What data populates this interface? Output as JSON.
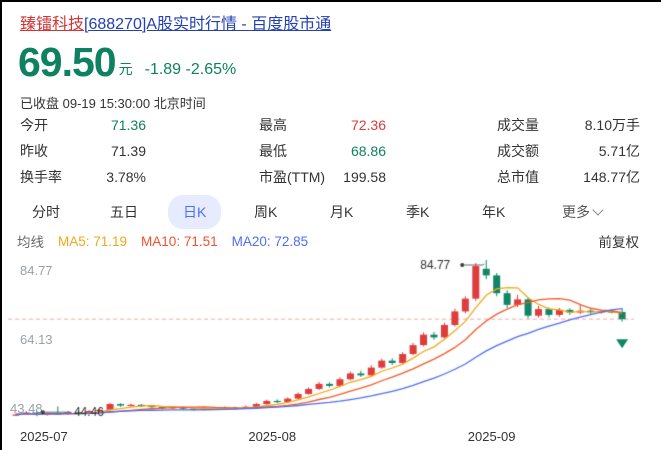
{
  "page": {
    "title_stock": "臻镭科技",
    "title_rest": "[688270]A股实时行情 - 百度股市通"
  },
  "quote": {
    "price": "69.50",
    "unit": "元",
    "change": "-1.89",
    "change_pct": "-2.65%",
    "tone": "down",
    "status_line": "已收盘 09-19 15:30:00 北京时间"
  },
  "stats": {
    "col1": [
      {
        "label": "今开",
        "value": "71.36",
        "tone": "down"
      },
      {
        "label": "昨收",
        "value": "71.39",
        "tone": "flat"
      },
      {
        "label": "换手率",
        "value": "3.78%",
        "tone": "flat"
      }
    ],
    "col2": [
      {
        "label": "最高",
        "value": "72.36",
        "tone": "up"
      },
      {
        "label": "最低",
        "value": "68.86",
        "tone": "down"
      },
      {
        "label": "市盈(TTM)",
        "value": "199.58",
        "tone": "flat"
      }
    ],
    "col3": [
      {
        "label": "成交量",
        "value": "8.10万手",
        "tone": "flat"
      },
      {
        "label": "成交额",
        "value": "5.71亿",
        "tone": "flat"
      },
      {
        "label": "总市值",
        "value": "148.77亿",
        "tone": "flat"
      }
    ]
  },
  "tabs": {
    "items": [
      "分时",
      "五日",
      "日K",
      "周K",
      "月K",
      "季K",
      "年K"
    ],
    "selected": "日K",
    "more_label": "更多"
  },
  "ma_legend": {
    "label": "均线",
    "ma5": "MA5: 71.19",
    "ma10": "MA10: 71.51",
    "ma20": "MA20: 72.85",
    "adjust_label": "前复权"
  },
  "chart_data": {
    "type": "candlestick",
    "title": "日K 前复权 candlestick chart 2025-07 to 2025-09-19",
    "y_axis": {
      "labels": [
        "84.77",
        "64.13",
        "43.48"
      ],
      "ylim": [
        43.48,
        84.77
      ]
    },
    "x_axis": {
      "ticks": [
        {
          "index": 0,
          "label": "2025-07"
        },
        {
          "index": 23,
          "label": "2025-08"
        },
        {
          "index": 44,
          "label": "2025-09"
        }
      ]
    },
    "current_price_line": 69.5,
    "ma_windows": [
      5,
      10,
      20
    ],
    "annotations": {
      "low": {
        "index": 2,
        "price": 44.46,
        "text": "44.46"
      },
      "high": {
        "index": 45,
        "price": 84.77,
        "text": "84.77"
      }
    },
    "marker": {
      "type": "sell-triangle-down",
      "index": 58
    },
    "colors": {
      "up": "#df3c3c",
      "down": "#128565",
      "ma5": "#f2a71c",
      "ma10": "#f45a28",
      "ma20": "#4e6ef2",
      "price_line": "#f2a7a7",
      "annotation": "#333333"
    },
    "candles": [
      [
        44.6,
        45.2,
        44.5,
        44.9
      ],
      [
        44.9,
        45.7,
        44.8,
        45.4
      ],
      [
        45.4,
        45.5,
        44.46,
        44.8
      ],
      [
        44.8,
        45.4,
        44.6,
        45.1
      ],
      [
        45.1,
        47.0,
        44.9,
        45.0
      ],
      [
        45.0,
        45.8,
        44.8,
        45.5
      ],
      [
        45.5,
        45.9,
        45.0,
        45.3
      ],
      [
        45.3,
        46.1,
        45.2,
        45.8
      ],
      [
        45.8,
        46.4,
        45.6,
        46.1
      ],
      [
        46.1,
        47.9,
        46.0,
        47.6
      ],
      [
        47.6,
        47.8,
        46.9,
        47.2
      ],
      [
        47.2,
        47.7,
        47.0,
        47.4
      ],
      [
        47.4,
        47.6,
        46.8,
        47.1
      ],
      [
        47.1,
        47.3,
        46.6,
        46.8
      ],
      [
        46.8,
        47.0,
        46.2,
        46.5
      ],
      [
        46.5,
        47.1,
        46.3,
        46.8
      ],
      [
        46.8,
        46.9,
        46.1,
        46.4
      ],
      [
        46.4,
        46.7,
        45.9,
        46.2
      ],
      [
        46.2,
        46.8,
        46.0,
        46.6
      ],
      [
        46.6,
        46.9,
        46.1,
        46.3
      ],
      [
        46.3,
        47.0,
        46.2,
        46.7
      ],
      [
        46.7,
        46.9,
        46.2,
        46.5
      ],
      [
        46.5,
        47.2,
        46.3,
        46.9
      ],
      [
        46.9,
        47.9,
        46.7,
        47.6
      ],
      [
        47.6,
        48.7,
        47.4,
        48.4
      ],
      [
        48.4,
        48.8,
        47.8,
        48.1
      ],
      [
        48.1,
        49.3,
        47.9,
        49.0
      ],
      [
        49.0,
        50.6,
        48.8,
        50.2
      ],
      [
        50.2,
        51.9,
        50.0,
        51.5
      ],
      [
        51.5,
        53.3,
        51.2,
        52.8
      ],
      [
        52.8,
        53.2,
        51.9,
        52.3
      ],
      [
        52.3,
        54.5,
        52.0,
        54.0
      ],
      [
        54.0,
        56.0,
        53.7,
        55.5
      ],
      [
        55.5,
        56.2,
        54.6,
        55.0
      ],
      [
        55.0,
        57.6,
        54.8,
        57.0
      ],
      [
        57.0,
        59.3,
        56.7,
        58.8
      ],
      [
        58.8,
        59.4,
        57.7,
        58.2
      ],
      [
        58.2,
        61.0,
        58.0,
        60.5
      ],
      [
        60.5,
        63.4,
        60.2,
        62.8
      ],
      [
        62.8,
        66.1,
        62.5,
        65.5
      ],
      [
        65.5,
        66.2,
        64.2,
        64.8
      ],
      [
        64.8,
        68.6,
        64.5,
        68.0
      ],
      [
        68.0,
        72.2,
        67.6,
        71.5
      ],
      [
        71.5,
        75.4,
        71.0,
        74.8
      ],
      [
        74.8,
        84.0,
        74.2,
        83.2
      ],
      [
        82.5,
        84.77,
        79.8,
        80.8
      ],
      [
        80.8,
        81.4,
        75.4,
        76.2
      ],
      [
        76.2,
        77.0,
        72.4,
        73.2
      ],
      [
        73.2,
        75.8,
        72.6,
        74.6
      ],
      [
        74.6,
        75.1,
        69.7,
        70.4
      ],
      [
        70.4,
        72.9,
        69.9,
        72.1
      ],
      [
        72.1,
        72.5,
        70.0,
        70.6
      ],
      [
        70.6,
        72.4,
        70.1,
        71.9
      ],
      [
        71.9,
        72.3,
        70.6,
        71.2
      ],
      [
        71.2,
        73.1,
        70.8,
        71.7
      ],
      [
        71.7,
        72.1,
        70.7,
        71.3
      ],
      [
        71.3,
        71.9,
        70.9,
        71.5
      ],
      [
        71.5,
        72.0,
        71.0,
        71.39
      ],
      [
        71.36,
        72.36,
        68.86,
        69.5
      ]
    ]
  }
}
